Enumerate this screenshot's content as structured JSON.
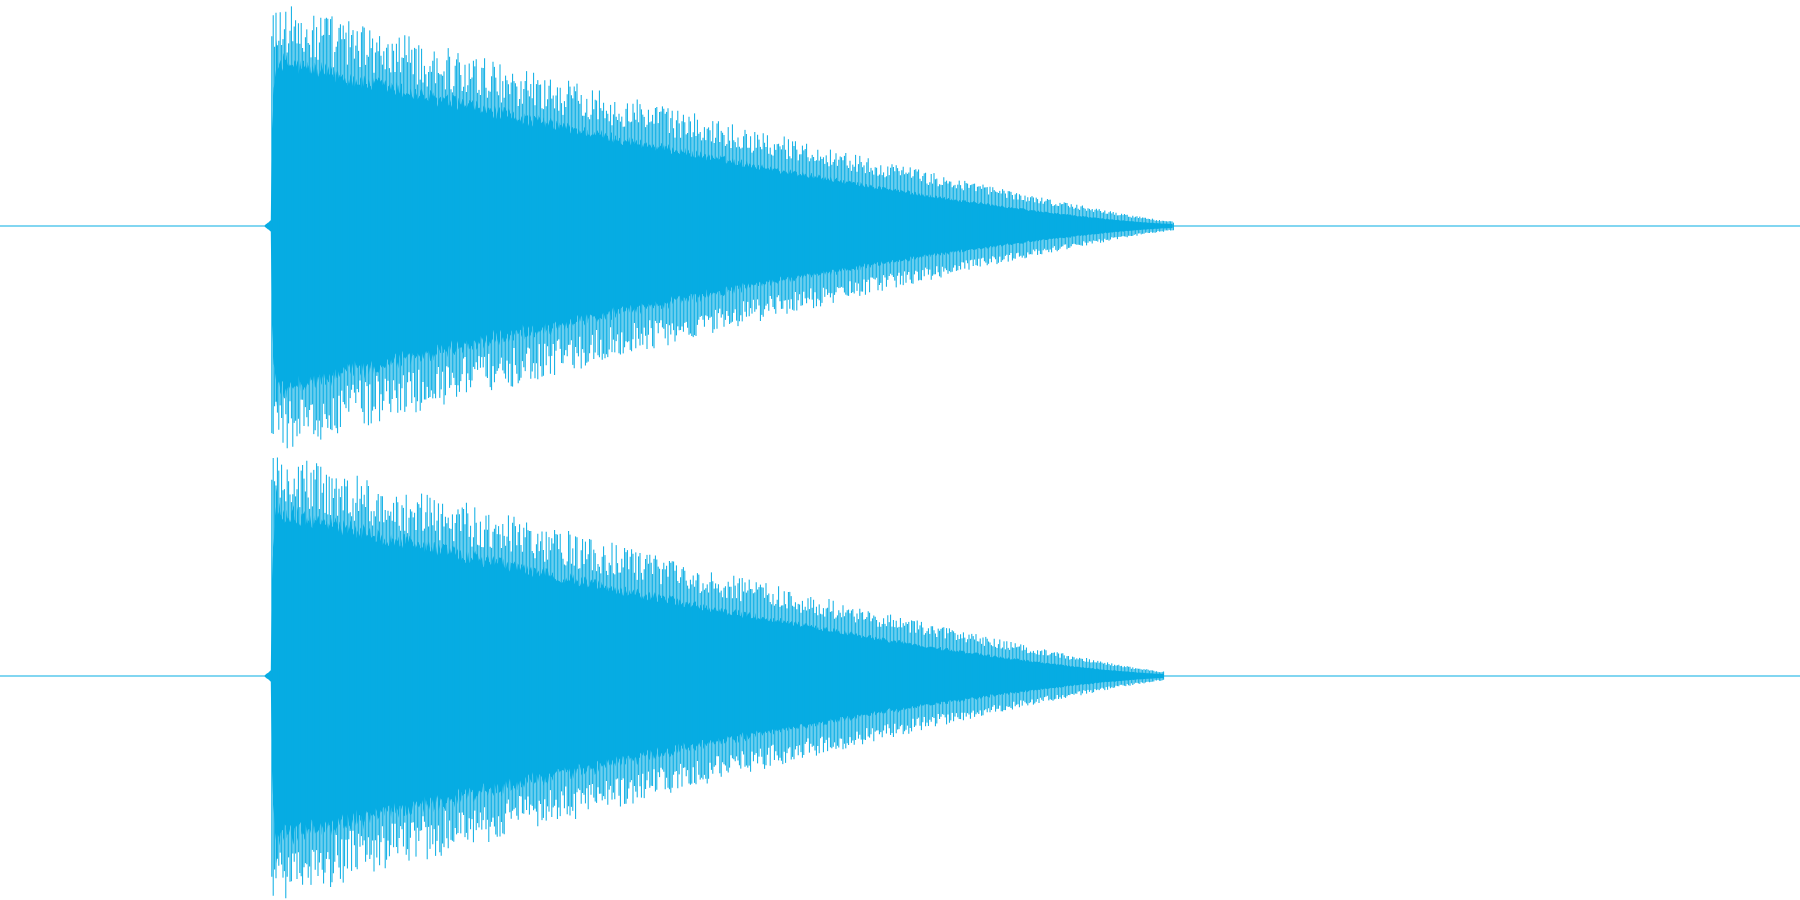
{
  "waveform": {
    "color": "#06ACE3",
    "background": "#FFFFFF",
    "channels": [
      {
        "name": "channel-1",
        "onset_fraction": 0.151,
        "decay_end_fraction": 0.652
      },
      {
        "name": "channel-2",
        "onset_fraction": 0.151,
        "decay_end_fraction": 0.647
      }
    ]
  }
}
